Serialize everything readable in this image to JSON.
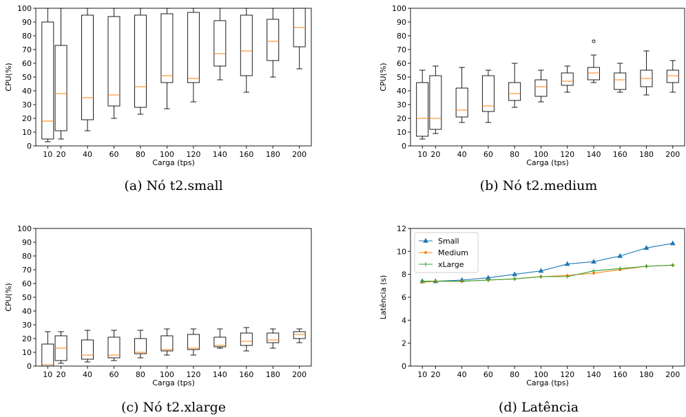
{
  "chart_data": [
    {
      "id": "a",
      "type": "box",
      "caption": "(a)  Nó t2.small",
      "xlabel": "Carga (tps)",
      "ylabel": "CPU(%)",
      "ylim": [
        0,
        100
      ],
      "yticks": [
        0,
        10,
        20,
        30,
        40,
        50,
        60,
        70,
        80,
        90,
        100
      ],
      "categories": [
        "10",
        "20",
        "40",
        "60",
        "80",
        "100",
        "120",
        "140",
        "160",
        "180",
        "200"
      ],
      "boxes": [
        {
          "x": 10,
          "min": 3,
          "q1": 5,
          "median": 18,
          "q3": 90,
          "max": 100,
          "outliers": []
        },
        {
          "x": 20,
          "min": 5,
          "q1": 11,
          "median": 38,
          "q3": 73,
          "max": 100,
          "outliers": []
        },
        {
          "x": 40,
          "min": 11,
          "q1": 19,
          "median": 35,
          "q3": 95,
          "max": 100,
          "outliers": []
        },
        {
          "x": 60,
          "min": 20,
          "q1": 29,
          "median": 37,
          "q3": 94,
          "max": 100,
          "outliers": []
        },
        {
          "x": 80,
          "min": 23,
          "q1": 28,
          "median": 43,
          "q3": 95,
          "max": 100,
          "outliers": []
        },
        {
          "x": 100,
          "min": 27,
          "q1": 46,
          "median": 51,
          "q3": 96,
          "max": 100,
          "outliers": []
        },
        {
          "x": 120,
          "min": 32,
          "q1": 46,
          "median": 49,
          "q3": 97,
          "max": 100,
          "outliers": []
        },
        {
          "x": 140,
          "min": 48,
          "q1": 58,
          "median": 67,
          "q3": 91,
          "max": 100,
          "outliers": []
        },
        {
          "x": 160,
          "min": 39,
          "q1": 51,
          "median": 69,
          "q3": 95,
          "max": 100,
          "outliers": []
        },
        {
          "x": 180,
          "min": 50,
          "q1": 62,
          "median": 76,
          "q3": 92,
          "max": 100,
          "outliers": []
        },
        {
          "x": 200,
          "min": 56,
          "q1": 72,
          "median": 86,
          "q3": 100,
          "max": 100,
          "outliers": []
        }
      ]
    },
    {
      "id": "b",
      "type": "box",
      "caption": "(b)  Nó t2.medium",
      "xlabel": "Carga (tps)",
      "ylabel": "CPU(%)",
      "ylim": [
        0,
        100
      ],
      "yticks": [
        0,
        10,
        20,
        30,
        40,
        50,
        60,
        70,
        80,
        90,
        100
      ],
      "categories": [
        "10",
        "20",
        "40",
        "60",
        "80",
        "100",
        "120",
        "140",
        "160",
        "180",
        "200"
      ],
      "boxes": [
        {
          "x": 10,
          "min": 5,
          "q1": 7,
          "median": 20,
          "q3": 46,
          "max": 55,
          "outliers": []
        },
        {
          "x": 20,
          "min": 9,
          "q1": 12,
          "median": 20,
          "q3": 51,
          "max": 58,
          "outliers": []
        },
        {
          "x": 40,
          "min": 17,
          "q1": 21,
          "median": 26,
          "q3": 42,
          "max": 57,
          "outliers": []
        },
        {
          "x": 60,
          "min": 17,
          "q1": 25,
          "median": 29,
          "q3": 51,
          "max": 55,
          "outliers": []
        },
        {
          "x": 80,
          "min": 28,
          "q1": 33,
          "median": 38,
          "q3": 46,
          "max": 60,
          "outliers": []
        },
        {
          "x": 100,
          "min": 32,
          "q1": 36,
          "median": 43,
          "q3": 48,
          "max": 55,
          "outliers": []
        },
        {
          "x": 120,
          "min": 39,
          "q1": 44,
          "median": 47,
          "q3": 53,
          "max": 58,
          "outliers": []
        },
        {
          "x": 140,
          "min": 46,
          "q1": 48,
          "median": 53,
          "q3": 57,
          "max": 66,
          "outliers": [
            76
          ]
        },
        {
          "x": 160,
          "min": 39,
          "q1": 41,
          "median": 48,
          "q3": 53,
          "max": 60,
          "outliers": []
        },
        {
          "x": 180,
          "min": 37,
          "q1": 43,
          "median": 49,
          "q3": 55,
          "max": 69,
          "outliers": []
        },
        {
          "x": 200,
          "min": 39,
          "q1": 46,
          "median": 51,
          "q3": 55,
          "max": 62,
          "outliers": []
        }
      ]
    },
    {
      "id": "c",
      "type": "box",
      "caption": "(c)  Nó t2.xlarge",
      "xlabel": "Carga (tps)",
      "ylabel": "CPU(%)",
      "ylim": [
        0,
        100
      ],
      "yticks": [
        0,
        10,
        20,
        30,
        40,
        50,
        60,
        70,
        80,
        90,
        100
      ],
      "categories": [
        "10",
        "20",
        "40",
        "60",
        "80",
        "100",
        "120",
        "140",
        "160",
        "180",
        "200"
      ],
      "boxes": [
        {
          "x": 10,
          "min": 0,
          "q1": 0,
          "median": 1,
          "q3": 16,
          "max": 25,
          "outliers": []
        },
        {
          "x": 20,
          "min": 2,
          "q1": 4,
          "median": 13,
          "q3": 22,
          "max": 25,
          "outliers": []
        },
        {
          "x": 40,
          "min": 3,
          "q1": 5,
          "median": 8,
          "q3": 19,
          "max": 26,
          "outliers": []
        },
        {
          "x": 60,
          "min": 4,
          "q1": 6,
          "median": 8,
          "q3": 21,
          "max": 26,
          "outliers": []
        },
        {
          "x": 80,
          "min": 6,
          "q1": 9,
          "median": 10,
          "q3": 20,
          "max": 26,
          "outliers": []
        },
        {
          "x": 100,
          "min": 8,
          "q1": 11,
          "median": 12,
          "q3": 22,
          "max": 27,
          "outliers": []
        },
        {
          "x": 120,
          "min": 8,
          "q1": 12,
          "median": 13,
          "q3": 23,
          "max": 27,
          "outliers": []
        },
        {
          "x": 140,
          "min": 13,
          "q1": 14,
          "median": 15,
          "q3": 21,
          "max": 27,
          "outliers": []
        },
        {
          "x": 160,
          "min": 11,
          "q1": 15,
          "median": 18,
          "q3": 24,
          "max": 28,
          "outliers": []
        },
        {
          "x": 180,
          "min": 13,
          "q1": 17,
          "median": 19,
          "q3": 24,
          "max": 27,
          "outliers": []
        },
        {
          "x": 200,
          "min": 17,
          "q1": 20,
          "median": 23,
          "q3": 25,
          "max": 27,
          "outliers": []
        }
      ]
    },
    {
      "id": "d",
      "type": "line",
      "caption": "(d)  Latência",
      "xlabel": "Carga (tps)",
      "ylabel": "Latência (s)",
      "ylim": [
        0,
        12
      ],
      "yticks": [
        0,
        2,
        4,
        6,
        8,
        10,
        12
      ],
      "x": [
        10,
        20,
        40,
        60,
        80,
        100,
        120,
        140,
        160,
        180,
        200
      ],
      "xticklabels": [
        "10",
        "20",
        "40",
        "60",
        "80",
        "100",
        "120",
        "140",
        "160",
        "180",
        "200"
      ],
      "legend_position": "top-left",
      "series": [
        {
          "name": "Small",
          "color": "#1f77b4",
          "marker": "triangle",
          "values": [
            7.4,
            7.4,
            7.5,
            7.7,
            8.0,
            8.3,
            8.9,
            9.1,
            9.6,
            10.3,
            10.7
          ]
        },
        {
          "name": "Medium",
          "color": "#ff7f0e",
          "marker": "dot",
          "values": [
            7.3,
            7.4,
            7.4,
            7.5,
            7.6,
            7.8,
            7.9,
            8.1,
            8.4,
            8.7,
            8.8
          ]
        },
        {
          "name": "xLarge",
          "color": "#2ca02c",
          "marker": "plus",
          "values": [
            7.4,
            7.4,
            7.4,
            7.5,
            7.6,
            7.8,
            7.8,
            8.3,
            8.5,
            8.7,
            8.8
          ]
        }
      ]
    }
  ],
  "colors": {
    "median": "#ff7f0e",
    "box": "#000000"
  }
}
